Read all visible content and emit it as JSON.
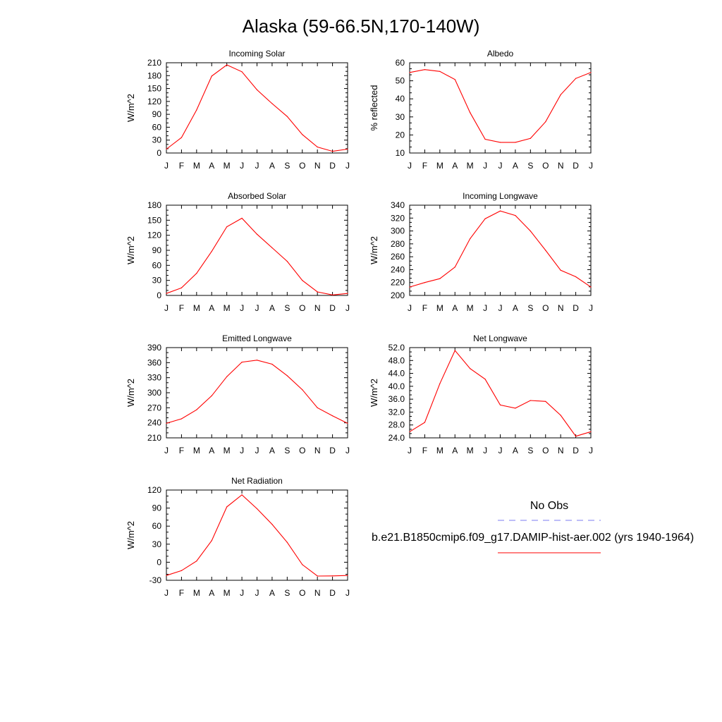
{
  "page": {
    "title": "Alaska (59-66.5N,170-140W)"
  },
  "legend": {
    "obs_label": "No Obs",
    "obs_color": "#7b7bf0",
    "model_label": "b.e21.B1850cmip6.f09_g17.DAMIP-hist-aer.002 (yrs 1940-1964)",
    "model_color": "#ff0000"
  },
  "months": [
    "J",
    "F",
    "M",
    "A",
    "M",
    "J",
    "J",
    "A",
    "S",
    "O",
    "N",
    "D",
    "J"
  ],
  "chart_data": [
    {
      "type": "line",
      "title": "Incoming Solar",
      "ylabel": "W/m^2",
      "ylim": [
        0,
        210
      ],
      "yticks": [
        0,
        30,
        60,
        90,
        120,
        150,
        180,
        210
      ],
      "ytick_labels": [
        "0",
        "30",
        "60",
        "90",
        "120",
        "150",
        "180",
        "210"
      ],
      "series": [
        {
          "color": "#ff0000",
          "values": [
            9,
            36,
            100,
            179,
            205,
            189,
            147,
            115,
            85,
            43,
            14,
            4,
            9
          ]
        }
      ]
    },
    {
      "type": "line",
      "title": "Albedo",
      "ylabel": "% reflected",
      "ylim": [
        10,
        60
      ],
      "yticks": [
        10,
        20,
        30,
        40,
        50,
        60
      ],
      "ytick_labels": [
        "10",
        "20",
        "30",
        "40",
        "50",
        "60"
      ],
      "series": [
        {
          "color": "#ff0000",
          "values": [
            54.6,
            56.2,
            55.2,
            50.7,
            32.4,
            17.6,
            15.9,
            15.9,
            18.1,
            27.3,
            42.3,
            51.3,
            54.6
          ]
        }
      ]
    },
    {
      "type": "line",
      "title": "Absorbed Solar",
      "ylabel": "W/m^2",
      "ylim": [
        0,
        180
      ],
      "yticks": [
        0,
        30,
        60,
        90,
        120,
        150,
        180
      ],
      "ytick_labels": [
        "0",
        "30",
        "60",
        "90",
        "120",
        "150",
        "180"
      ],
      "series": [
        {
          "color": "#ff0000",
          "values": [
            4,
            15,
            44,
            88,
            137,
            154,
            122,
            95,
            68,
            30,
            7,
            1,
            4
          ]
        }
      ]
    },
    {
      "type": "line",
      "title": "Incoming Longwave",
      "ylabel": "W/m^2",
      "ylim": [
        200,
        340
      ],
      "yticks": [
        200,
        220,
        240,
        260,
        280,
        300,
        320,
        340
      ],
      "ytick_labels": [
        "200",
        "220",
        "240",
        "260",
        "280",
        "300",
        "320",
        "340"
      ],
      "series": [
        {
          "color": "#ff0000",
          "values": [
            213,
            220,
            226,
            244,
            288,
            319,
            331,
            324,
            300,
            270,
            239,
            229,
            213
          ]
        }
      ]
    },
    {
      "type": "line",
      "title": "Emitted Longwave",
      "ylabel": "W/m^2",
      "ylim": [
        210,
        390
      ],
      "yticks": [
        210,
        240,
        270,
        300,
        330,
        360,
        390
      ],
      "ytick_labels": [
        "210",
        "240",
        "270",
        "300",
        "330",
        "360",
        "390"
      ],
      "series": [
        {
          "color": "#ff0000",
          "values": [
            239,
            248,
            266,
            294,
            332,
            361,
            365,
            357,
            334,
            306,
            270,
            254,
            239
          ]
        }
      ]
    },
    {
      "type": "line",
      "title": "Net Longwave",
      "ylabel": "W/m^2",
      "ylim": [
        24,
        52
      ],
      "yticks": [
        24,
        28,
        32,
        36,
        40,
        44,
        48,
        52
      ],
      "ytick_labels": [
        "24.0",
        "28.0",
        "32.0",
        "36.0",
        "40.0",
        "44.0",
        "48.0",
        "52.0"
      ],
      "series": [
        {
          "color": "#ff0000",
          "values": [
            25.9,
            28.8,
            40.8,
            51.1,
            45.5,
            42.2,
            34.2,
            33.2,
            35.6,
            35.3,
            31,
            24.5,
            25.9
          ]
        }
      ]
    },
    {
      "type": "line",
      "title": "Net Radiation",
      "ylabel": "W/m^2",
      "ylim": [
        -30,
        120
      ],
      "yticks": [
        -30,
        0,
        30,
        60,
        90,
        120
      ],
      "ytick_labels": [
        "-30",
        "0",
        "30",
        "60",
        "90",
        "120"
      ],
      "series": [
        {
          "color": "#ff0000",
          "values": [
            -22,
            -14,
            2,
            36,
            92,
            112,
            89,
            63,
            33,
            -4,
            -23,
            -22.7,
            -22
          ]
        }
      ]
    }
  ]
}
